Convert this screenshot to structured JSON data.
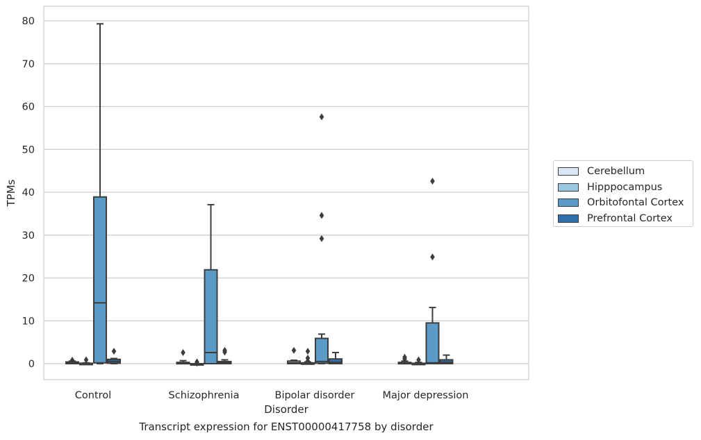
{
  "chart_data": {
    "type": "box",
    "xlabel": "Disorder",
    "ylabel": "TPMs",
    "ylim": [
      -3.8,
      83.3
    ],
    "yticks": [
      0,
      10,
      20,
      30,
      40,
      50,
      60,
      70,
      80
    ],
    "grid": "horizontal",
    "legend_position": "right",
    "categories": [
      "Control",
      "Schizophrenia",
      "Bipolar disorder",
      "Major depression"
    ],
    "series": [
      {
        "name": "Cerebellum",
        "color": "#dae8f5",
        "boxes": [
          {
            "q1": 0.0,
            "median": 0.1,
            "q3": 0.4,
            "whislo": 0.0,
            "whishi": 0.6,
            "fliers": [
              0.8
            ]
          },
          {
            "q1": 0.0,
            "median": 0.1,
            "q3": 0.3,
            "whislo": 0.0,
            "whishi": 0.7,
            "fliers": [
              2.6
            ]
          },
          {
            "q1": 0.0,
            "median": 0.2,
            "q3": 0.6,
            "whislo": 0.0,
            "whishi": 0.8,
            "fliers": [
              3.1
            ]
          },
          {
            "q1": 0.0,
            "median": 0.1,
            "q3": 0.3,
            "whislo": 0.0,
            "whishi": 0.6,
            "fliers": [
              1.1,
              1.5
            ]
          }
        ]
      },
      {
        "name": "Hipppocampus",
        "color": "#9ac8e0",
        "boxes": [
          {
            "q1": 0.0,
            "median": 0.0,
            "q3": 0.1,
            "whislo": 0.0,
            "whishi": 0.2,
            "fliers": [
              0.9
            ]
          },
          {
            "q1": 0.0,
            "median": 0.0,
            "q3": 0.0,
            "whislo": 0.0,
            "whishi": 0.0,
            "fliers": [
              0.4,
              0.1
            ]
          },
          {
            "q1": 0.0,
            "median": 0.1,
            "q3": 0.2,
            "whislo": 0.0,
            "whishi": 0.4,
            "fliers": [
              2.9,
              1.3,
              0.6
            ]
          },
          {
            "q1": 0.0,
            "median": 0.0,
            "q3": 0.1,
            "whislo": 0.0,
            "whishi": 0.3,
            "fliers": [
              0.9
            ]
          }
        ]
      },
      {
        "name": "Orbitofontal Cortex",
        "color": "#5a9bc8",
        "boxes": [
          {
            "q1": 0.2,
            "median": 14.2,
            "q3": 38.9,
            "whislo": 0.0,
            "whishi": 79.3,
            "fliers": []
          },
          {
            "q1": 0.0,
            "median": 2.6,
            "q3": 21.9,
            "whislo": 0.0,
            "whishi": 37.1,
            "fliers": []
          },
          {
            "q1": 0.1,
            "median": 0.5,
            "q3": 5.9,
            "whislo": 0.0,
            "whishi": 6.9,
            "fliers": [
              57.6,
              34.6,
              29.2
            ]
          },
          {
            "q1": 0.0,
            "median": 0.2,
            "q3": 9.5,
            "whislo": 0.0,
            "whishi": 13.1,
            "fliers": [
              42.6,
              24.9
            ]
          }
        ]
      },
      {
        "name": "Prefrontal Cortex",
        "color": "#2f6fab",
        "boxes": [
          {
            "q1": 0.1,
            "median": 0.5,
            "q3": 1.0,
            "whislo": 0.0,
            "whishi": 1.2,
            "fliers": [
              2.9
            ]
          },
          {
            "q1": 0.0,
            "median": 0.2,
            "q3": 0.5,
            "whislo": 0.0,
            "whishi": 0.9,
            "fliers": [
              3.1,
              2.7
            ]
          },
          {
            "q1": 0.0,
            "median": 0.3,
            "q3": 1.1,
            "whislo": 0.0,
            "whishi": 2.6,
            "fliers": []
          },
          {
            "q1": 0.0,
            "median": 0.3,
            "q3": 0.9,
            "whislo": 0.0,
            "whishi": 2.0,
            "fliers": []
          }
        ]
      }
    ],
    "caption": "Transcript expression for ENST00000417758 by disorder"
  }
}
